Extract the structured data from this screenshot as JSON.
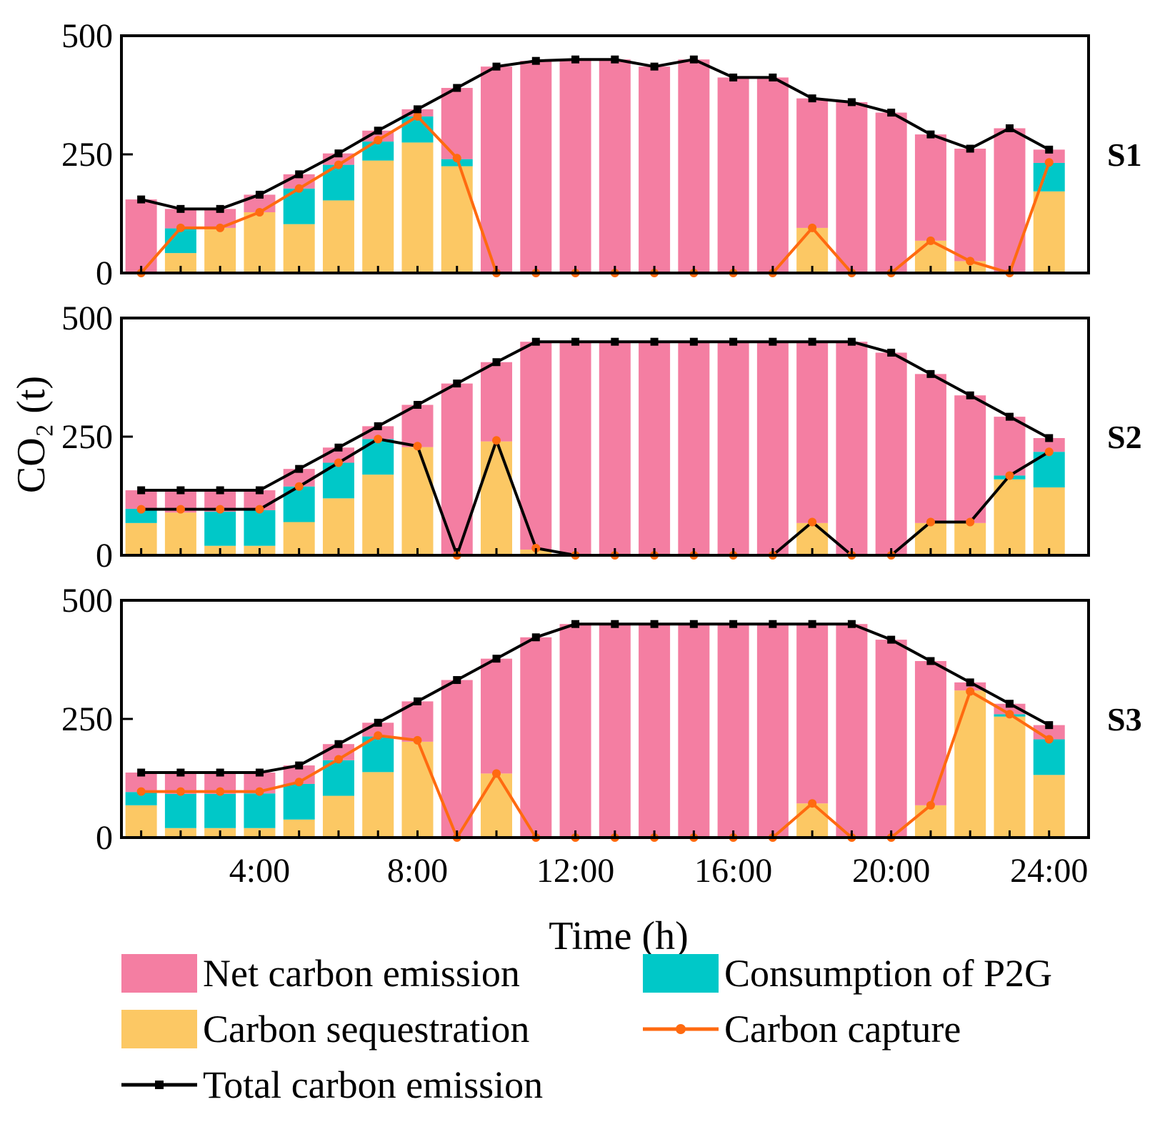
{
  "chart_data": {
    "type": "bar",
    "stacked": true,
    "xlabel": "Time (h)",
    "ylabel": "CO₂ (t)",
    "xlim": [
      0.5,
      25.0
    ],
    "ylim": [
      0,
      500
    ],
    "y_ticks": [
      "0",
      "250",
      "500"
    ],
    "x_ticks": [
      {
        "x": 4,
        "label": "4:00"
      },
      {
        "x": 8,
        "label": "8:00"
      },
      {
        "x": 12,
        "label": "12:00"
      },
      {
        "x": 16,
        "label": "16:00"
      },
      {
        "x": 20,
        "label": "20:00"
      },
      {
        "x": 24,
        "label": "24:00"
      }
    ],
    "hours": [
      1,
      2,
      3,
      4,
      5,
      6,
      7,
      8,
      9,
      10,
      11,
      12,
      13,
      14,
      15,
      16,
      17,
      18,
      19,
      20,
      21,
      22,
      23,
      24
    ],
    "legend": [
      {
        "key": "net",
        "label": "Net carbon emission",
        "kind": "bar"
      },
      {
        "key": "p2g",
        "label": "Consumption of P2G",
        "kind": "bar"
      },
      {
        "key": "seq",
        "label": "Carbon sequestration",
        "kind": "bar"
      },
      {
        "key": "capture",
        "label": "Carbon capture",
        "kind": "line"
      },
      {
        "key": "total",
        "label": "Total carbon emission",
        "kind": "line"
      }
    ],
    "colors": {
      "net": "#F47EA2",
      "p2g": "#00C8C8",
      "seq": "#FCC864",
      "capture": "#FF6A10",
      "total": "#000000"
    },
    "panels": [
      {
        "label": "S1",
        "total": [
          155,
          135,
          135,
          165,
          208,
          252,
          300,
          345,
          390,
          435,
          447,
          450,
          450,
          435,
          450,
          412,
          412,
          368,
          360,
          338,
          292,
          262,
          305,
          260
        ],
        "seq": [
          0,
          42,
          95,
          128,
          103,
          153,
          237,
          275,
          225,
          0,
          0,
          0,
          0,
          0,
          0,
          0,
          0,
          95,
          0,
          0,
          68,
          25,
          0,
          172
        ],
        "p2g": [
          0,
          52,
          0,
          0,
          75,
          75,
          40,
          55,
          15,
          0,
          0,
          0,
          0,
          0,
          0,
          0,
          0,
          0,
          0,
          0,
          0,
          0,
          0,
          60
        ],
        "capture": [
          0,
          95,
          95,
          128,
          178,
          228,
          280,
          330,
          242,
          0,
          0,
          0,
          0,
          0,
          0,
          0,
          0,
          95,
          0,
          0,
          68,
          25,
          0,
          233
        ]
      },
      {
        "label": "S2",
        "total": [
          137,
          137,
          137,
          137,
          182,
          227,
          272,
          317,
          362,
          407,
          450,
          450,
          450,
          450,
          450,
          450,
          450,
          450,
          450,
          427,
          382,
          337,
          292,
          247
        ],
        "seq": [
          68,
          90,
          20,
          20,
          70,
          120,
          170,
          228,
          0,
          240,
          12,
          0,
          0,
          0,
          0,
          0,
          0,
          68,
          0,
          0,
          68,
          68,
          160,
          143
        ],
        "p2g": [
          30,
          0,
          72,
          75,
          75,
          75,
          75,
          0,
          0,
          0,
          0,
          0,
          0,
          0,
          0,
          0,
          0,
          0,
          0,
          0,
          0,
          0,
          8,
          75
        ],
        "capture": [
          97,
          97,
          97,
          97,
          145,
          195,
          245,
          230,
          0,
          242,
          15,
          0,
          0,
          0,
          0,
          0,
          0,
          70,
          0,
          0,
          70,
          70,
          168,
          218
        ]
      },
      {
        "label": "S3",
        "total": [
          137,
          137,
          137,
          137,
          152,
          197,
          242,
          287,
          332,
          377,
          422,
          450,
          450,
          450,
          450,
          450,
          450,
          450,
          450,
          417,
          372,
          327,
          282,
          237
        ],
        "seq": [
          68,
          20,
          20,
          20,
          38,
          88,
          138,
          202,
          0,
          135,
          0,
          0,
          0,
          0,
          0,
          0,
          0,
          72,
          0,
          0,
          68,
          310,
          255,
          132
        ],
        "p2g": [
          28,
          72,
          72,
          73,
          75,
          75,
          75,
          0,
          0,
          0,
          0,
          0,
          0,
          0,
          0,
          0,
          0,
          0,
          0,
          0,
          0,
          0,
          5,
          75
        ],
        "capture": [
          97,
          97,
          97,
          97,
          117,
          165,
          215,
          205,
          0,
          135,
          0,
          0,
          0,
          0,
          0,
          0,
          0,
          72,
          0,
          0,
          68,
          308,
          260,
          207
        ]
      }
    ]
  }
}
